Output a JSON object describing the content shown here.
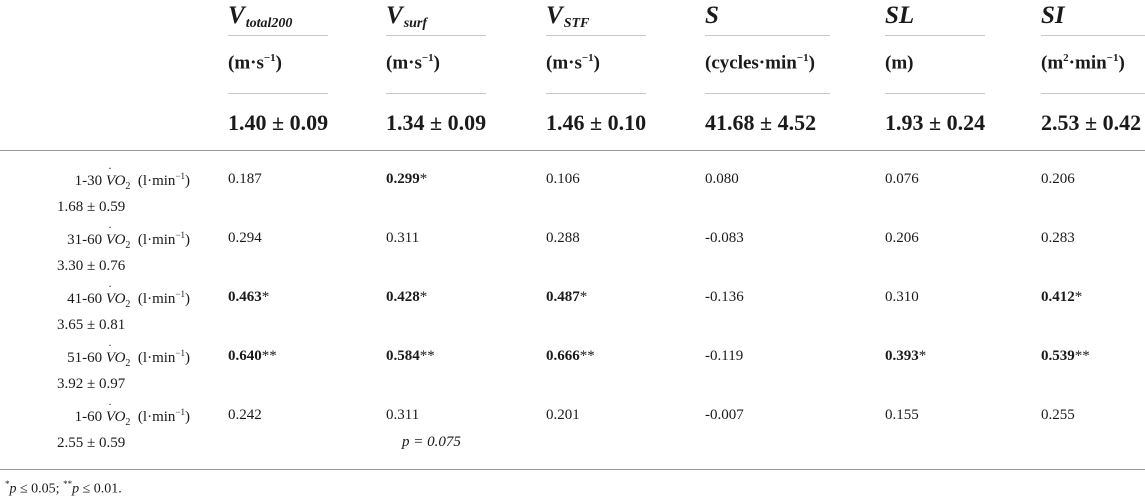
{
  "columns": [
    {
      "var": "V",
      "sub": "total200",
      "unit_pre": "(m·s",
      "unit_sup": "−1",
      "unit_post": ")",
      "value": "1.40 ± 0.09"
    },
    {
      "var": "V",
      "sub": "surf",
      "unit_pre": "(m·s",
      "unit_sup": "−1",
      "unit_post": ")",
      "value": "1.34 ± 0.09"
    },
    {
      "var": "V",
      "sub": "STF",
      "unit_pre": "(m·s",
      "unit_sup": "−1",
      "unit_post": ")",
      "value": "1.46 ± 0.10"
    },
    {
      "var": "S",
      "sub": "",
      "unit_pre": "(cycles·min",
      "unit_sup": "−1",
      "unit_post": ")",
      "value": "41.68 ± 4.52"
    },
    {
      "var": "SL",
      "sub": "",
      "unit_pre": "(m)",
      "unit_sup": "",
      "unit_post": "",
      "value": "1.93 ± 0.24"
    },
    {
      "var": "SI",
      "sub": "",
      "unit_pre": "(m",
      "unit_sup": "2",
      "unit_post": "·min",
      "unit_sup2": "−1",
      "unit_post2": ")",
      "value": "2.53 ± 0.42"
    }
  ],
  "vo2": {
    "symbol": "VO",
    "dot": "˙",
    "sub": "2",
    "unit_pre": "(l·min",
    "unit_sup": "−1",
    "unit_post": ")"
  },
  "rows": [
    {
      "range": "1-30",
      "mean": "1.68 ± 0.59",
      "cells": [
        {
          "v": "0.187",
          "s": "",
          "bold": false
        },
        {
          "v": "0.299",
          "s": "*",
          "bold": true
        },
        {
          "v": "0.106",
          "s": "",
          "bold": false
        },
        {
          "v": "0.080",
          "s": "",
          "bold": false
        },
        {
          "v": "0.076",
          "s": "",
          "bold": false
        },
        {
          "v": "0.206",
          "s": "",
          "bold": false
        }
      ]
    },
    {
      "range": "31-60",
      "mean": "3.30 ± 0.76",
      "cells": [
        {
          "v": "0.294",
          "s": "",
          "bold": false
        },
        {
          "v": "0.311",
          "s": "",
          "bold": false
        },
        {
          "v": "0.288",
          "s": "",
          "bold": false
        },
        {
          "v": "-0.083",
          "s": "",
          "bold": false
        },
        {
          "v": "0.206",
          "s": "",
          "bold": false
        },
        {
          "v": "0.283",
          "s": "",
          "bold": false
        }
      ]
    },
    {
      "range": "41-60",
      "mean": "3.65 ± 0.81",
      "cells": [
        {
          "v": "0.463",
          "s": "*",
          "bold": true
        },
        {
          "v": "0.428",
          "s": "*",
          "bold": true
        },
        {
          "v": "0.487",
          "s": "*",
          "bold": true
        },
        {
          "v": "-0.136",
          "s": "",
          "bold": false
        },
        {
          "v": "0.310",
          "s": "",
          "bold": false
        },
        {
          "v": "0.412",
          "s": "*",
          "bold": true
        }
      ]
    },
    {
      "range": "51-60",
      "mean": "3.92 ± 0.97",
      "cells": [
        {
          "v": "0.640",
          "s": "**",
          "bold": true
        },
        {
          "v": "0.584",
          "s": "**",
          "bold": true
        },
        {
          "v": "0.666",
          "s": "**",
          "bold": true
        },
        {
          "v": "-0.119",
          "s": "",
          "bold": false
        },
        {
          "v": "0.393",
          "s": "*",
          "bold": true
        },
        {
          "v": "0.539",
          "s": "**",
          "bold": true
        }
      ]
    },
    {
      "range": "1-60",
      "mean": "2.55 ± 0.59",
      "cells": [
        {
          "v": "0.242",
          "s": "",
          "bold": false
        },
        {
          "v": "0.311",
          "s": "",
          "bold": false
        },
        {
          "v": "0.201",
          "s": "",
          "bold": false
        },
        {
          "v": "-0.007",
          "s": "",
          "bold": false
        },
        {
          "v": "0.155",
          "s": "",
          "bold": false
        },
        {
          "v": "0.255",
          "s": "",
          "bold": false
        }
      ]
    }
  ],
  "p_note": "p = 0.075",
  "footnote": {
    "s1": "*",
    "p1": "p",
    "t1": " ≤ 0.05; ",
    "s2": "**",
    "p2": "p",
    "t2": " ≤ 0.01."
  }
}
